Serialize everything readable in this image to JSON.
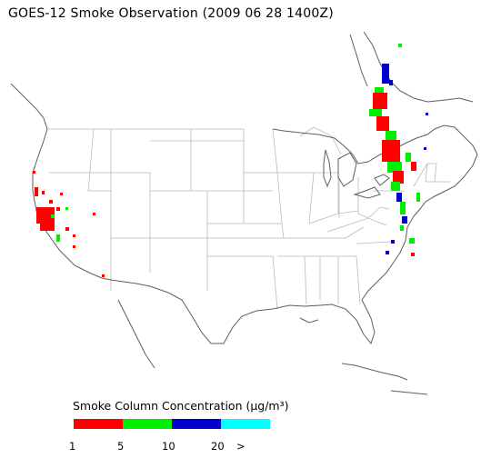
{
  "title": "GOES-12 Smoke Observation (2009 06 28  1400Z)",
  "legend": {
    "title": "Smoke Column Concentration (μg/m³)",
    "bins": [
      {
        "color": "#ff0000"
      },
      {
        "color": "#00ee00"
      },
      {
        "color": "#0000cc"
      },
      {
        "color": "#00ffff"
      }
    ],
    "tick_labels": [
      "1",
      "5",
      "10",
      "20",
      ">"
    ]
  },
  "colors": {
    "boundaries": "#b8b8b8",
    "coastline": "#555555"
  }
}
